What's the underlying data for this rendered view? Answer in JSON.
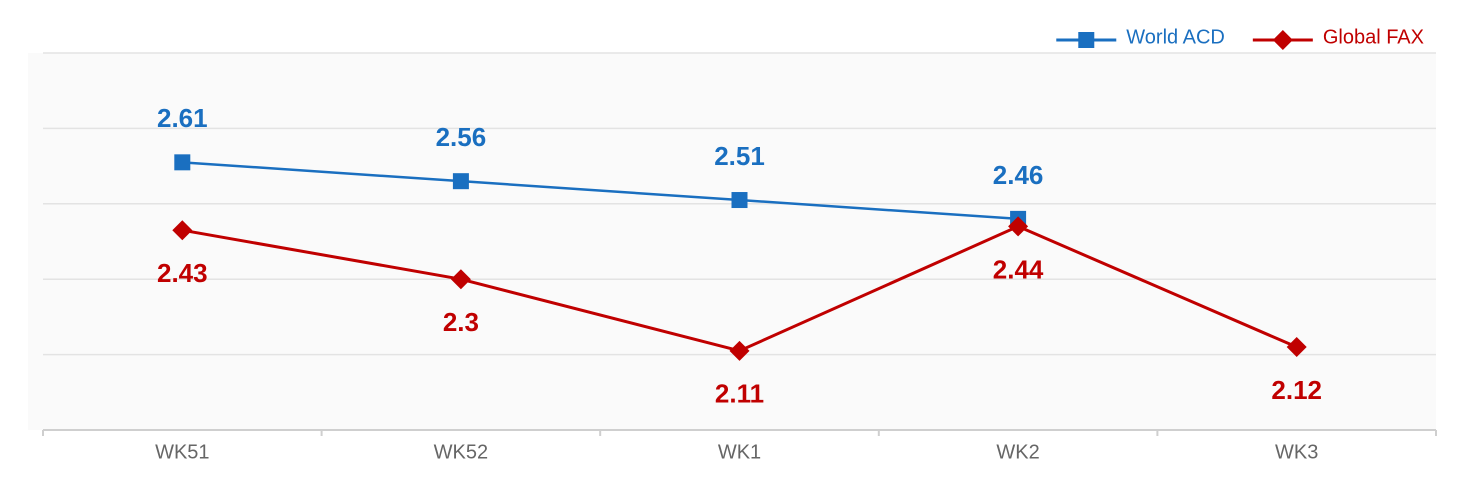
{
  "chart_data": {
    "type": "line",
    "categories": [
      "WK51",
      "WK52",
      "WK1",
      "WK2",
      "WK3"
    ],
    "series": [
      {
        "name": "World ACD",
        "color": "#1a6fc0",
        "marker": "square",
        "values": [
          2.61,
          2.56,
          2.51,
          2.46,
          null
        ]
      },
      {
        "name": "Global FAX",
        "color": "#c00000",
        "marker": "diamond",
        "values": [
          2.43,
          2.3,
          2.11,
          2.44,
          2.12
        ]
      }
    ],
    "ylim": [
      1.9,
      2.9
    ],
    "yticks": [
      1.9,
      2.1,
      2.3,
      2.5,
      2.7,
      2.9
    ],
    "grid": true,
    "legend": "top-right"
  }
}
